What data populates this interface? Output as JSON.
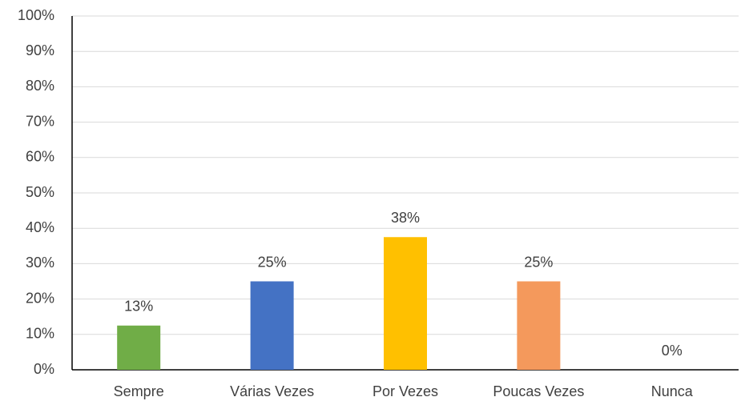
{
  "chart_data": {
    "type": "bar",
    "categories": [
      "Sempre",
      "Várias Vezes",
      "Por Vezes",
      "Poucas Vezes",
      "Nunca"
    ],
    "values": [
      12.5,
      25,
      37.5,
      25,
      0
    ],
    "value_labels": [
      "13%",
      "25%",
      "38%",
      "25%",
      "0%"
    ],
    "colors": [
      "#70ad47",
      "#4472c4",
      "#ffc000",
      "#f4995c",
      "#a5a5a5"
    ],
    "ylim": [
      0,
      100
    ],
    "yticks": [
      {
        "value": 0,
        "label": "0%"
      },
      {
        "value": 10,
        "label": "10%"
      },
      {
        "value": 20,
        "label": "20%"
      },
      {
        "value": 30,
        "label": "30%"
      },
      {
        "value": 40,
        "label": "40%"
      },
      {
        "value": 50,
        "label": "50%"
      },
      {
        "value": 60,
        "label": "60%"
      },
      {
        "value": 70,
        "label": "70%"
      },
      {
        "value": 80,
        "label": "80%"
      },
      {
        "value": 90,
        "label": "90%"
      },
      {
        "value": 100,
        "label": "100%"
      }
    ],
    "grid": true
  }
}
